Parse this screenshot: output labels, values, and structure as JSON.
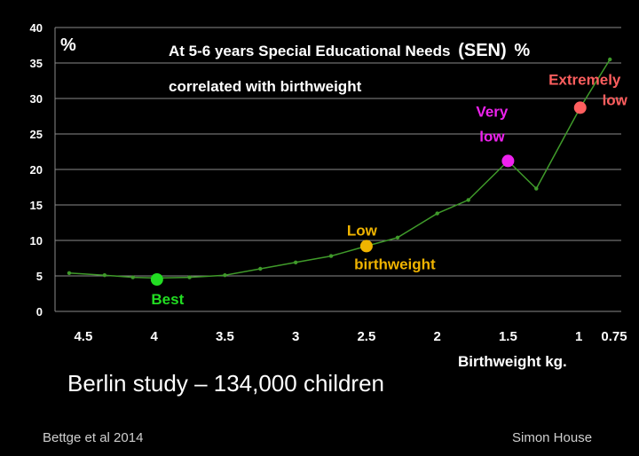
{
  "colors": {
    "background": "#000000",
    "grid": "#8a8a8a",
    "line": "#3f9a2a",
    "small_marker": "#3f9a2a",
    "best": "#22dd22",
    "low": "#f0b400",
    "very_low": "#ee22ee",
    "extremely_low": "#ff5f5f",
    "text": "#ffffff"
  },
  "title": {
    "line1": "At 5-6 years Special  Educational  Needs",
    "sen": "(SEN)",
    "pct_right": "%",
    "line2": "correlated with birthweight"
  },
  "ylabel": "%",
  "xlabel": "Birthweight  kg.",
  "subtitle": "Berlin study – 134,000 children",
  "credit_left": "Bettge et al 2014",
  "credit_right": "Simon House",
  "chart_data": {
    "type": "line",
    "title": "At 5-6 years Special Educational Needs (SEN) % correlated with birthweight",
    "xlabel": "Birthweight kg.",
    "ylabel": "%",
    "x_reversed": true,
    "xlim": [
      4.7,
      0.7
    ],
    "ylim": [
      0,
      40
    ],
    "y_ticks": [
      0,
      5,
      10,
      15,
      20,
      25,
      30,
      35,
      40
    ],
    "x_ticks": [
      {
        "value": 4.5,
        "label": "4.5"
      },
      {
        "value": 4.0,
        "label": "4"
      },
      {
        "value": 3.5,
        "label": "3.5"
      },
      {
        "value": 3.0,
        "label": "3"
      },
      {
        "value": 2.5,
        "label": "2.5"
      },
      {
        "value": 2.0,
        "label": "2"
      },
      {
        "value": 1.5,
        "label": "1.5"
      },
      {
        "value": 1.0,
        "label": "1"
      },
      {
        "value": 0.75,
        "label": "0.75"
      }
    ],
    "grid": true,
    "series": [
      {
        "x": [
          4.6,
          4.35,
          4.15,
          3.98,
          3.75,
          3.5,
          3.25,
          3.0,
          2.75,
          2.5,
          2.28,
          2.0,
          1.78,
          1.5,
          1.3,
          0.99,
          0.78
        ],
        "values": [
          5.4,
          5.1,
          4.8,
          4.7,
          4.8,
          5.1,
          6.0,
          6.9,
          7.8,
          9.2,
          10.4,
          13.8,
          15.7,
          21.2,
          17.3,
          28.7,
          35.5
        ]
      }
    ],
    "annotations": [
      {
        "label": "Best",
        "x": 3.98,
        "y": 4.5,
        "color_key": "best"
      },
      {
        "label": "Low",
        "label2": "birthweight",
        "x": 2.5,
        "y": 9.2,
        "color_key": "low"
      },
      {
        "label": "Very",
        "label2": "low",
        "x": 1.5,
        "y": 21.2,
        "color_key": "very_low"
      },
      {
        "label": "Extremely",
        "label2": "low",
        "x": 0.99,
        "y": 28.7,
        "color_key": "extremely_low"
      }
    ]
  }
}
